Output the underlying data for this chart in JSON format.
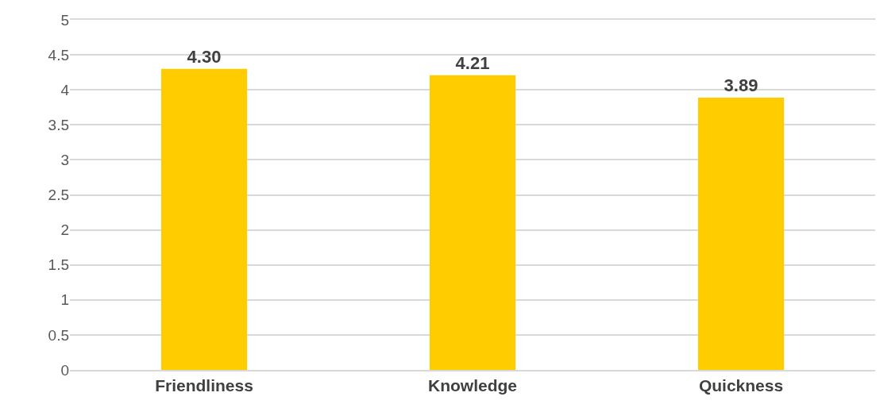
{
  "chart_data": {
    "type": "bar",
    "categories": [
      "Friendliness",
      "Knowledge",
      "Quickness"
    ],
    "values": [
      4.3,
      4.21,
      3.89
    ],
    "value_labels": [
      "4.30",
      "4.21",
      "3.89"
    ],
    "color": "#ffcc00",
    "ylim": [
      0,
      5
    ],
    "yticks": [
      0,
      0.5,
      1,
      1.5,
      2,
      2.5,
      3,
      3.5,
      4,
      4.5,
      5
    ],
    "grid": "y"
  }
}
